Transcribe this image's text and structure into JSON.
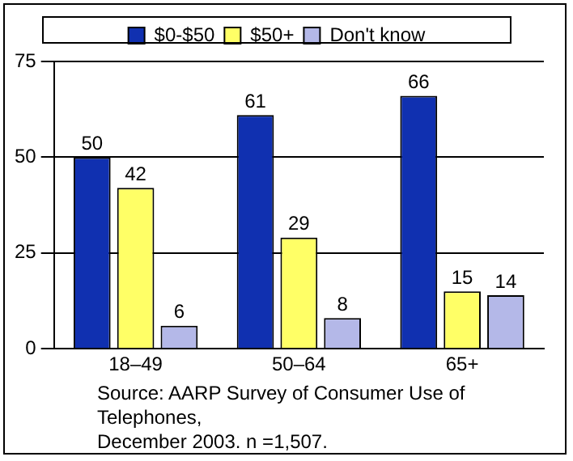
{
  "chart_data": {
    "type": "bar",
    "categories": [
      "18–49",
      "50–64",
      "65+"
    ],
    "series": [
      {
        "name": "$0-$50",
        "color": "#1030b0",
        "values": [
          50,
          61,
          66
        ]
      },
      {
        "name": "$50+",
        "color": "#ffff66",
        "values": [
          42,
          29,
          15
        ]
      },
      {
        "name": "Don't know",
        "color": "#b4b8e8",
        "values": [
          6,
          8,
          14
        ]
      }
    ],
    "ylim": [
      0,
      75
    ],
    "yticks": [
      0,
      25,
      50,
      75
    ],
    "grid": "y",
    "legend": "top",
    "data_labels": true,
    "annotations": [
      "Source: AARP Survey of Consumer Use of Telephones,",
      "December 2003.  n =1,507."
    ]
  }
}
